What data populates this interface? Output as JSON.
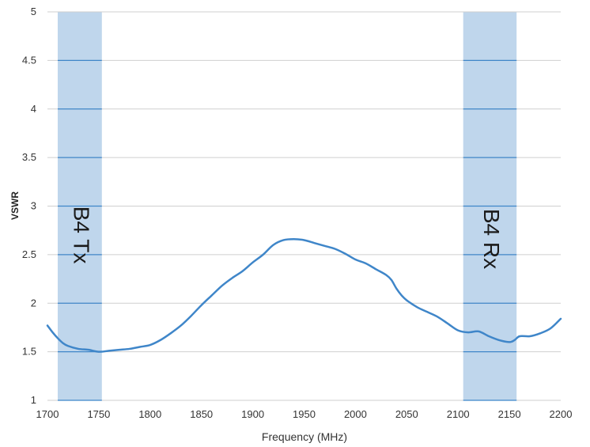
{
  "chart_data": {
    "type": "line",
    "xlabel": "Frequency (MHz)",
    "ylabel": "VSWR",
    "xlim": [
      1700,
      2200
    ],
    "ylim": [
      1,
      5
    ],
    "x_ticks": [
      "1700",
      "1750",
      "1800",
      "1850",
      "1900",
      "1950",
      "2000",
      "2050",
      "2100",
      "2150",
      "2200"
    ],
    "y_ticks": [
      "1",
      "1.5",
      "2",
      "2.5",
      "3",
      "3.5",
      "4",
      "4.5",
      "5"
    ],
    "grid": true,
    "bands": [
      {
        "label": "B4 Tx",
        "start": 1710,
        "end": 1753
      },
      {
        "label": "B4 Rx",
        "start": 2105,
        "end": 2157
      }
    ],
    "colors": {
      "line": "#3f86c9",
      "band": "#bfd6ec",
      "grid": "#cfcfcf"
    },
    "series": [
      {
        "x": [
          1700,
          1705,
          1710,
          1715,
          1720,
          1730,
          1740,
          1750,
          1760,
          1770,
          1780,
          1790,
          1800,
          1810,
          1820,
          1830,
          1840,
          1850,
          1860,
          1870,
          1880,
          1890,
          1900,
          1910,
          1920,
          1930,
          1940,
          1950,
          1960,
          1970,
          1980,
          1990,
          2000,
          2010,
          2020,
          2030,
          2035,
          2040,
          2045,
          2050,
          2060,
          2070,
          2080,
          2090,
          2100,
          2110,
          2120,
          2130,
          2140,
          2150,
          2155,
          2160,
          2170,
          2180,
          2190,
          2200
        ],
        "y": [
          1.77,
          1.7,
          1.64,
          1.59,
          1.56,
          1.53,
          1.52,
          1.5,
          1.51,
          1.52,
          1.53,
          1.55,
          1.57,
          1.62,
          1.69,
          1.77,
          1.87,
          1.98,
          2.08,
          2.18,
          2.26,
          2.33,
          2.42,
          2.5,
          2.6,
          2.65,
          2.66,
          2.65,
          2.62,
          2.59,
          2.56,
          2.51,
          2.45,
          2.41,
          2.35,
          2.29,
          2.24,
          2.15,
          2.08,
          2.03,
          1.96,
          1.91,
          1.86,
          1.79,
          1.72,
          1.7,
          1.71,
          1.66,
          1.62,
          1.6,
          1.62,
          1.66,
          1.66,
          1.69,
          1.74,
          1.84
        ]
      }
    ]
  }
}
